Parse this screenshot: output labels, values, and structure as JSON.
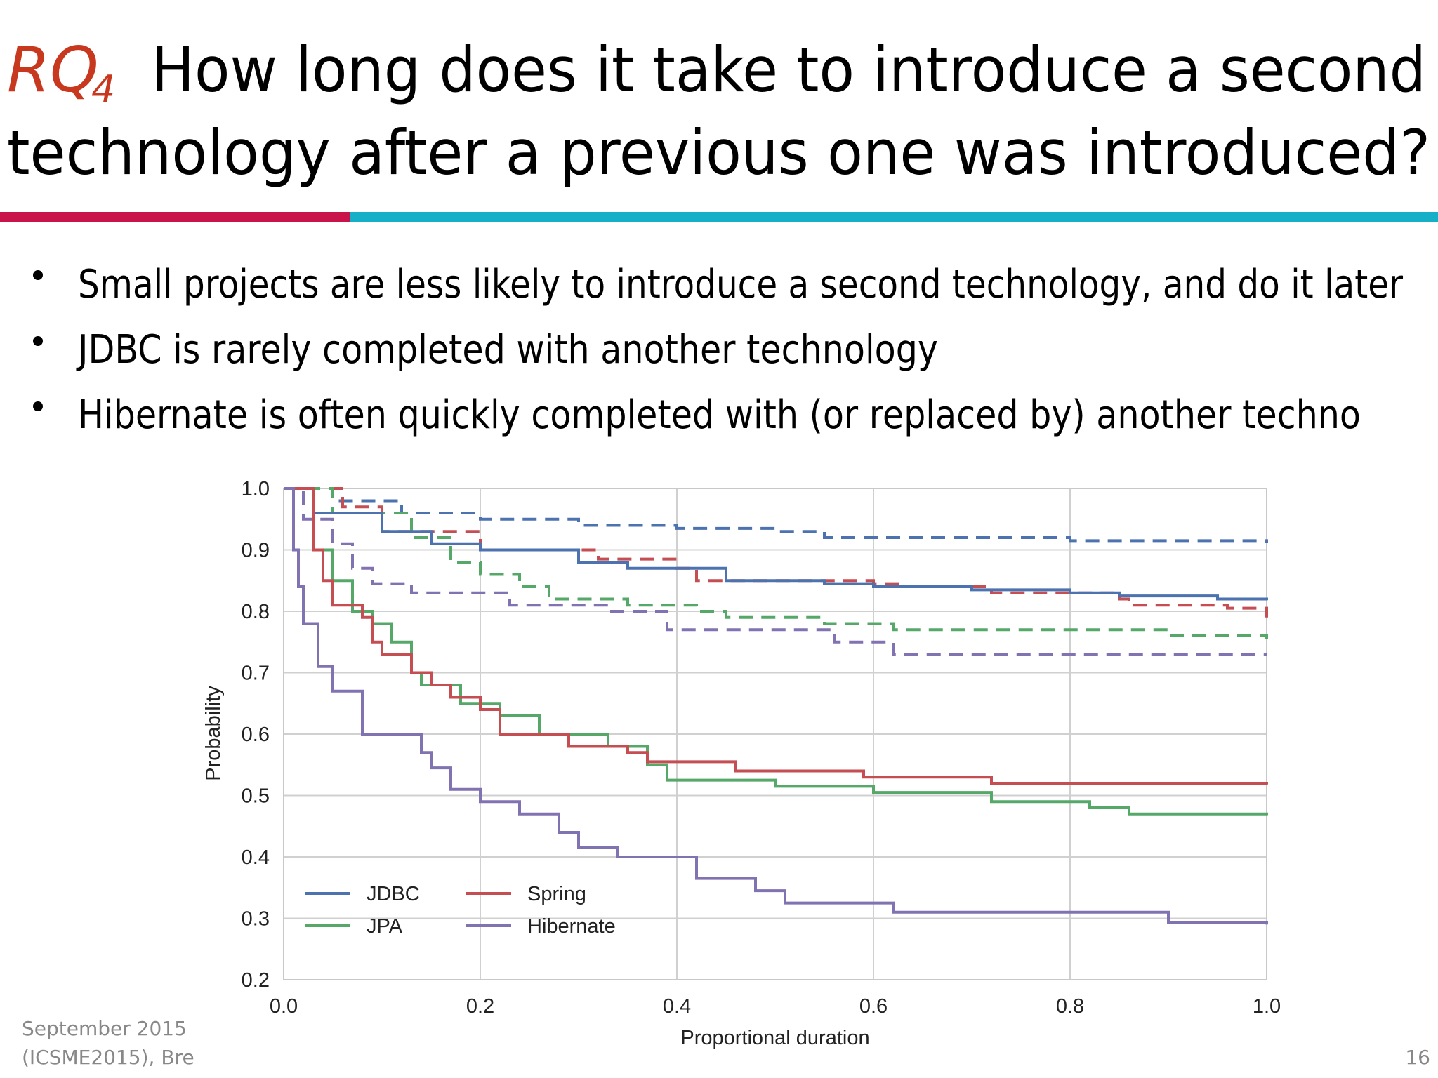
{
  "header": {
    "rq": "RQ",
    "rq_sub": "4",
    "title_line1": "How long does it take to introduce a second",
    "title_line2": "technology after a previous one was introduced?"
  },
  "bullets": [
    "Small projects are less likely to introduce a second technology, and do it later",
    "JDBC is rarely completed with another technology",
    "Hibernate is often quickly completed with (or replaced by) another techno"
  ],
  "footer": {
    "date": "September 2015",
    "venue": "(ICSME2015), Bre",
    "page": "16"
  },
  "chart_data": {
    "type": "line",
    "step": true,
    "xlabel": "Proportional duration",
    "ylabel": "Probability",
    "xlim": [
      0,
      1
    ],
    "ylim": [
      0.2,
      1.0
    ],
    "xticks": [
      {
        "value": 0,
        "label": "0.0"
      },
      0.2,
      0.4,
      0.6,
      0.8,
      {
        "value": 1,
        "label": "1.0"
      }
    ],
    "yticks": [
      0.2,
      0.3,
      0.4,
      0.5,
      0.6,
      0.7,
      0.8,
      0.9,
      {
        "value": 1,
        "label": "1.0"
      }
    ],
    "grid": true,
    "legend": "lower left",
    "series": [
      {
        "color": "#4c72b0",
        "dashed": true,
        "x": [
          0,
          0.05,
          0.12,
          0.2,
          0.3,
          0.4,
          0.5,
          0.55,
          0.8,
          1.0
        ],
        "values": [
          1.0,
          0.98,
          0.96,
          0.95,
          0.94,
          0.935,
          0.93,
          0.92,
          0.915,
          0.912
        ]
      },
      {
        "color": "#c44e52",
        "dashed": true,
        "x": [
          0,
          0.06,
          0.1,
          0.2,
          0.32,
          0.4,
          0.42,
          0.6,
          0.63,
          0.72,
          0.85,
          0.86,
          0.96,
          1.0
        ],
        "values": [
          1.0,
          0.97,
          0.93,
          0.9,
          0.885,
          0.87,
          0.85,
          0.845,
          0.84,
          0.83,
          0.82,
          0.81,
          0.805,
          0.79
        ]
      },
      {
        "color": "#55a868",
        "dashed": true,
        "x": [
          0,
          0.05,
          0.13,
          0.17,
          0.2,
          0.24,
          0.27,
          0.35,
          0.42,
          0.45,
          0.55,
          0.62,
          0.9,
          1.0
        ],
        "values": [
          1.0,
          0.96,
          0.92,
          0.88,
          0.86,
          0.84,
          0.82,
          0.81,
          0.8,
          0.79,
          0.78,
          0.77,
          0.76,
          0.755
        ]
      },
      {
        "color": "#8172b2",
        "dashed": true,
        "x": [
          0,
          0.02,
          0.05,
          0.07,
          0.09,
          0.13,
          0.23,
          0.33,
          0.39,
          0.56,
          0.62,
          1.0
        ],
        "values": [
          1.0,
          0.95,
          0.91,
          0.87,
          0.845,
          0.83,
          0.81,
          0.8,
          0.77,
          0.75,
          0.73,
          0.73
        ]
      },
      {
        "name": "JDBC",
        "color": "#4c72b0",
        "x": [
          0,
          0.03,
          0.1,
          0.15,
          0.2,
          0.3,
          0.35,
          0.45,
          0.55,
          0.6,
          0.7,
          0.8,
          0.85,
          0.95,
          1.0
        ],
        "values": [
          1.0,
          0.96,
          0.93,
          0.91,
          0.9,
          0.88,
          0.87,
          0.85,
          0.845,
          0.84,
          0.835,
          0.83,
          0.825,
          0.82,
          0.818
        ]
      },
      {
        "name": "JPA",
        "color": "#55a868",
        "x": [
          0,
          0.03,
          0.05,
          0.07,
          0.09,
          0.11,
          0.13,
          0.14,
          0.18,
          0.22,
          0.26,
          0.33,
          0.37,
          0.39,
          0.5,
          0.6,
          0.72,
          0.82,
          0.86,
          1.0
        ],
        "values": [
          1.0,
          0.9,
          0.85,
          0.8,
          0.78,
          0.75,
          0.7,
          0.68,
          0.65,
          0.63,
          0.6,
          0.58,
          0.55,
          0.525,
          0.515,
          0.505,
          0.49,
          0.48,
          0.47,
          0.468
        ]
      },
      {
        "name": "Spring",
        "color": "#c44e52",
        "x": [
          0,
          0.03,
          0.04,
          0.05,
          0.08,
          0.09,
          0.1,
          0.13,
          0.15,
          0.17,
          0.2,
          0.22,
          0.29,
          0.35,
          0.37,
          0.46,
          0.59,
          0.72,
          1.0
        ],
        "values": [
          1.0,
          0.9,
          0.85,
          0.81,
          0.79,
          0.75,
          0.73,
          0.7,
          0.68,
          0.66,
          0.64,
          0.6,
          0.58,
          0.57,
          0.555,
          0.54,
          0.53,
          0.52,
          0.518
        ]
      },
      {
        "name": "Hibernate",
        "color": "#8172b2",
        "x": [
          0,
          0.01,
          0.015,
          0.02,
          0.035,
          0.05,
          0.08,
          0.14,
          0.15,
          0.17,
          0.2,
          0.24,
          0.28,
          0.3,
          0.34,
          0.42,
          0.48,
          0.51,
          0.62,
          0.9,
          1.0
        ],
        "values": [
          1.0,
          0.9,
          0.84,
          0.78,
          0.71,
          0.67,
          0.6,
          0.57,
          0.545,
          0.51,
          0.49,
          0.47,
          0.44,
          0.415,
          0.4,
          0.365,
          0.345,
          0.325,
          0.31,
          0.293,
          0.29
        ]
      }
    ]
  }
}
